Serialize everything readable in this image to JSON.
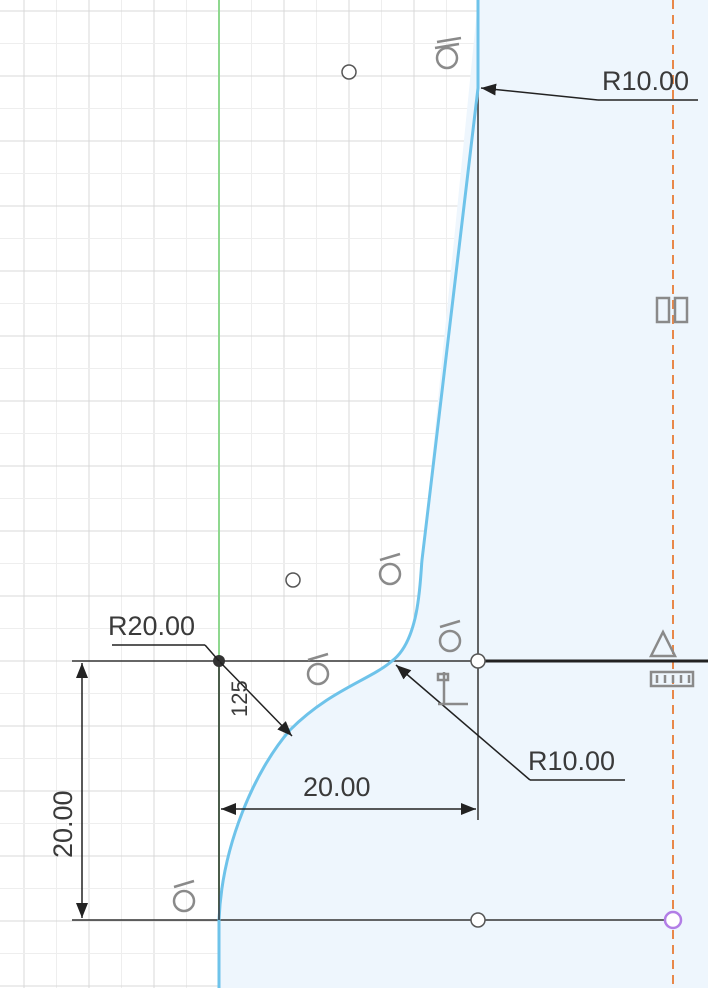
{
  "sketch": {
    "dimensions": {
      "radius_top": "R10.00",
      "radius_fillet": "R10.00",
      "radius_large": "R20.00",
      "angle_value": "125",
      "horizontal": "20.00",
      "vertical": "20.00"
    },
    "colors": {
      "profile": "#6ec3ea",
      "profile_fill": "#eef6fd",
      "axis_green": "#8fd88f",
      "centerline": "#e8884a",
      "grid_minor": "#eeeeee",
      "grid_major": "#d8d8d8",
      "dimension": "#333333",
      "point_purple": "#b27ee6"
    },
    "constraint_icons": [
      "coincident-icon",
      "tangent-icon",
      "horizontal-icon",
      "vertical-icon",
      "fix-icon",
      "symmetry-icon"
    ]
  }
}
